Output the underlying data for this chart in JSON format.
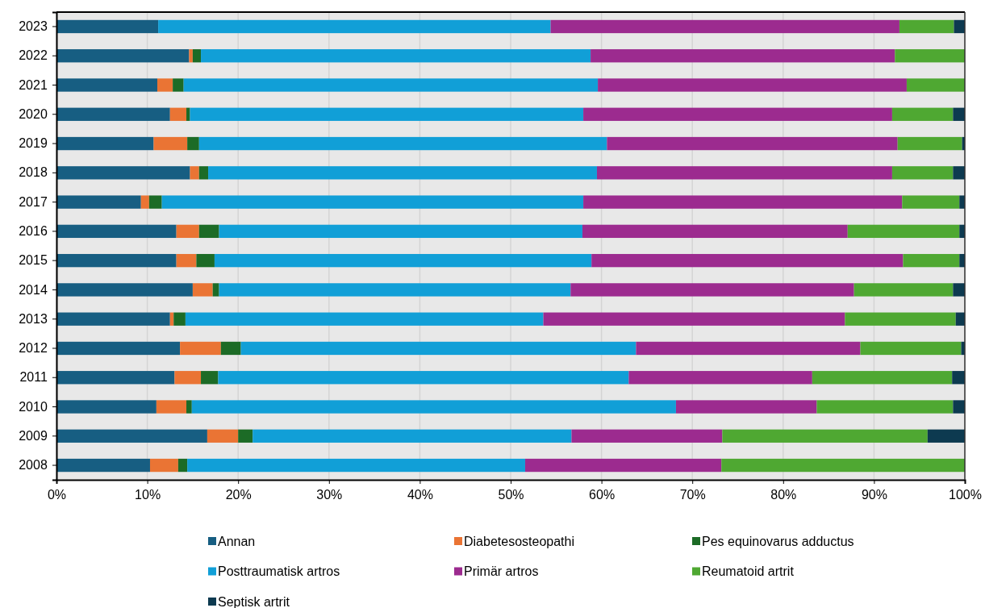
{
  "chart_data": {
    "type": "bar",
    "orientation": "horizontal",
    "stacked": true,
    "categories": [
      "2023",
      "2022",
      "2021",
      "2020",
      "2019",
      "2018",
      "2017",
      "2016",
      "2015",
      "2014",
      "2013",
      "2012",
      "2011",
      "2010",
      "2009",
      "2008"
    ],
    "series": [
      {
        "name": "Annan",
        "color": "#175e82",
        "values": [
          11.2,
          14.6,
          11.1,
          12.5,
          10.7,
          14.7,
          9.3,
          13.2,
          13.2,
          15.0,
          12.5,
          13.6,
          13.0,
          11.0,
          16.6,
          10.3
        ]
      },
      {
        "name": "Diabetesosteopathi",
        "color": "#ea7434",
        "values": [
          0,
          0.4,
          1.7,
          1.8,
          3.7,
          1.0,
          0.9,
          2.5,
          2.2,
          2.2,
          0.4,
          4.5,
          2.9,
          3.3,
          3.4,
          3.1
        ]
      },
      {
        "name": "Pes equinovarus adductus",
        "color": "#1c6b26",
        "values": [
          0,
          0.9,
          1.2,
          0.4,
          1.3,
          1.0,
          1.4,
          2.2,
          2.0,
          0.7,
          1.3,
          2.2,
          1.9,
          0.6,
          1.6,
          1.0
        ]
      },
      {
        "name": "Posttraumatisk artros",
        "color": "#119fd7",
        "values": [
          43.2,
          42.9,
          45.6,
          43.3,
          44.9,
          42.8,
          46.4,
          40.0,
          41.5,
          38.7,
          39.4,
          43.5,
          45.2,
          53.3,
          35.1,
          37.2
        ]
      },
      {
        "name": "Primär artros",
        "color": "#9c2b8f",
        "values": [
          38.4,
          33.5,
          34.0,
          34.0,
          32.0,
          32.5,
          35.1,
          29.2,
          34.3,
          31.2,
          33.2,
          24.7,
          20.2,
          15.5,
          16.6,
          21.6
        ]
      },
      {
        "name": "Reumatoid artrit",
        "color": "#4fa832",
        "values": [
          6.0,
          7.7,
          6.4,
          6.7,
          7.1,
          6.7,
          6.3,
          12.3,
          6.2,
          10.9,
          12.2,
          11.1,
          15.4,
          15.0,
          22.6,
          26.8
        ]
      },
      {
        "name": "Septisk artrit",
        "color": "#0d3a50",
        "values": [
          1.2,
          0,
          0,
          1.3,
          0.3,
          1.3,
          0.6,
          0.6,
          0.6,
          1.3,
          1.0,
          0.4,
          1.4,
          1.3,
          4.1,
          0
        ]
      }
    ],
    "xlim": [
      0,
      100
    ],
    "xticks": [
      {
        "value": 0,
        "label": "0%"
      },
      {
        "value": 10,
        "label": "10%"
      },
      {
        "value": 20,
        "label": "20%"
      },
      {
        "value": 30,
        "label": "30%"
      },
      {
        "value": 40,
        "label": "40%"
      },
      {
        "value": 50,
        "label": "50%"
      },
      {
        "value": 60,
        "label": "60%"
      },
      {
        "value": 70,
        "label": "70%"
      },
      {
        "value": 80,
        "label": "80%"
      },
      {
        "value": 90,
        "label": "90%"
      },
      {
        "value": 100,
        "label": "100%"
      }
    ],
    "grid": "x",
    "legend": "bottom"
  }
}
